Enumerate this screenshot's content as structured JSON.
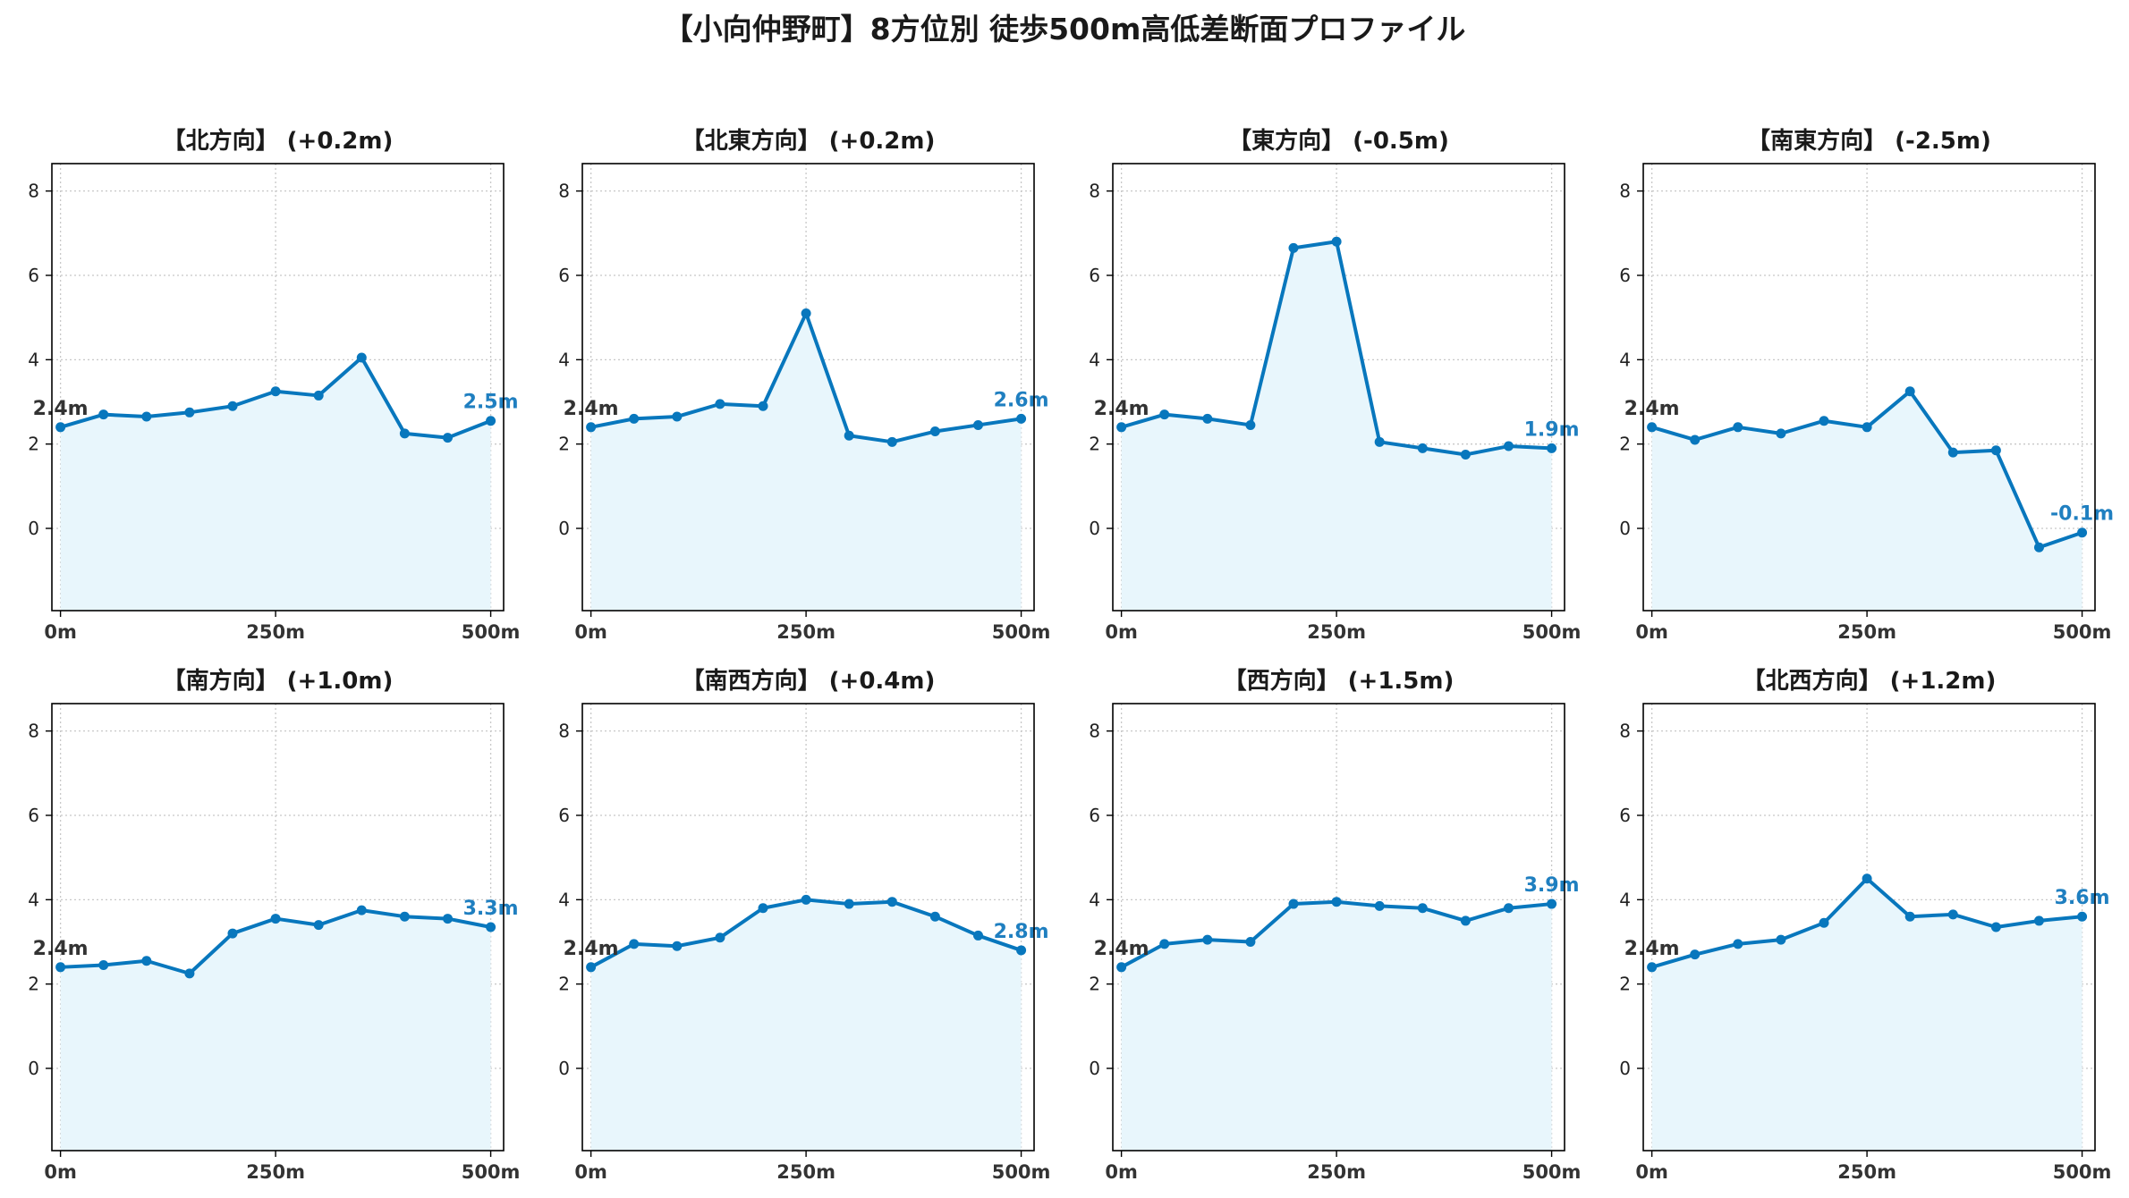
{
  "figure": {
    "title": "【小向仲野町】8方位別 徒歩500m高低差断面プロファイル",
    "line_color": "#0877bd",
    "fill_color": "#e8f6fc",
    "start_label_color": "#333333",
    "end_label_color": "#1f7fc0",
    "grid": true,
    "grid_style": "dotted",
    "axes_frame_color": "#000000"
  },
  "chart_data": [
    {
      "type": "line",
      "title": "【北方向】 (+0.2m)",
      "x": [
        0,
        50,
        100,
        150,
        200,
        250,
        300,
        350,
        400,
        450,
        500
      ],
      "y": [
        2.4,
        2.7,
        2.65,
        2.75,
        2.9,
        3.25,
        3.15,
        4.05,
        2.25,
        2.15,
        2.55
      ],
      "start_label": "2.4m",
      "end_label": "2.5m",
      "xticks": [
        0,
        250,
        500
      ],
      "xticklabels": [
        "0m",
        "250m",
        "500m"
      ],
      "yticks": [
        0,
        2,
        4,
        6,
        8
      ],
      "xlim": [
        -10,
        515
      ],
      "ylim": [
        -1.95,
        8.65
      ]
    },
    {
      "type": "line",
      "title": "【北東方向】 (+0.2m)",
      "x": [
        0,
        50,
        100,
        150,
        200,
        250,
        300,
        350,
        400,
        450,
        500
      ],
      "y": [
        2.4,
        2.6,
        2.65,
        2.95,
        2.9,
        5.1,
        2.2,
        2.05,
        2.3,
        2.45,
        2.6
      ],
      "start_label": "2.4m",
      "end_label": "2.6m",
      "xticks": [
        0,
        250,
        500
      ],
      "xticklabels": [
        "0m",
        "250m",
        "500m"
      ],
      "yticks": [
        0,
        2,
        4,
        6,
        8
      ],
      "xlim": [
        -10,
        515
      ],
      "ylim": [
        -1.95,
        8.65
      ]
    },
    {
      "type": "line",
      "title": "【東方向】 (-0.5m)",
      "x": [
        0,
        50,
        100,
        150,
        200,
        250,
        300,
        350,
        400,
        450,
        500
      ],
      "y": [
        2.4,
        2.7,
        2.6,
        2.45,
        6.65,
        6.8,
        2.05,
        1.9,
        1.75,
        1.95,
        1.9
      ],
      "start_label": "2.4m",
      "end_label": "1.9m",
      "xticks": [
        0,
        250,
        500
      ],
      "xticklabels": [
        "0m",
        "250m",
        "500m"
      ],
      "yticks": [
        0,
        2,
        4,
        6,
        8
      ],
      "xlim": [
        -10,
        515
      ],
      "ylim": [
        -1.95,
        8.65
      ]
    },
    {
      "type": "line",
      "title": "【南東方向】 (-2.5m)",
      "x": [
        0,
        50,
        100,
        150,
        200,
        250,
        300,
        350,
        400,
        450,
        500
      ],
      "y": [
        2.4,
        2.1,
        2.4,
        2.25,
        2.55,
        2.4,
        3.25,
        1.8,
        1.85,
        -0.45,
        -0.1
      ],
      "start_label": "2.4m",
      "end_label": "-0.1m",
      "xticks": [
        0,
        250,
        500
      ],
      "xticklabels": [
        "0m",
        "250m",
        "500m"
      ],
      "yticks": [
        0,
        2,
        4,
        6,
        8
      ],
      "xlim": [
        -10,
        515
      ],
      "ylim": [
        -1.95,
        8.65
      ]
    },
    {
      "type": "line",
      "title": "【南方向】 (+1.0m)",
      "x": [
        0,
        50,
        100,
        150,
        200,
        250,
        300,
        350,
        400,
        450,
        500
      ],
      "y": [
        2.4,
        2.45,
        2.55,
        2.25,
        3.2,
        3.55,
        3.4,
        3.75,
        3.6,
        3.55,
        3.35
      ],
      "start_label": "2.4m",
      "end_label": "3.3m",
      "xticks": [
        0,
        250,
        500
      ],
      "xticklabels": [
        "0m",
        "250m",
        "500m"
      ],
      "yticks": [
        0,
        2,
        4,
        6,
        8
      ],
      "xlim": [
        -10,
        515
      ],
      "ylim": [
        -1.95,
        8.65
      ]
    },
    {
      "type": "line",
      "title": "【南西方向】 (+0.4m)",
      "x": [
        0,
        50,
        100,
        150,
        200,
        250,
        300,
        350,
        400,
        450,
        500
      ],
      "y": [
        2.4,
        2.95,
        2.9,
        3.1,
        3.8,
        4.0,
        3.9,
        3.95,
        3.6,
        3.15,
        2.8
      ],
      "start_label": "2.4m",
      "end_label": "2.8m",
      "xticks": [
        0,
        250,
        500
      ],
      "xticklabels": [
        "0m",
        "250m",
        "500m"
      ],
      "yticks": [
        0,
        2,
        4,
        6,
        8
      ],
      "xlim": [
        -10,
        515
      ],
      "ylim": [
        -1.95,
        8.65
      ]
    },
    {
      "type": "line",
      "title": "【西方向】 (+1.5m)",
      "x": [
        0,
        50,
        100,
        150,
        200,
        250,
        300,
        350,
        400,
        450,
        500
      ],
      "y": [
        2.4,
        2.95,
        3.05,
        3.0,
        3.9,
        3.95,
        3.85,
        3.8,
        3.5,
        3.8,
        3.9
      ],
      "start_label": "2.4m",
      "end_label": "3.9m",
      "xticks": [
        0,
        250,
        500
      ],
      "xticklabels": [
        "0m",
        "250m",
        "500m"
      ],
      "yticks": [
        0,
        2,
        4,
        6,
        8
      ],
      "xlim": [
        -10,
        515
      ],
      "ylim": [
        -1.95,
        8.65
      ]
    },
    {
      "type": "line",
      "title": "【北西方向】 (+1.2m)",
      "x": [
        0,
        50,
        100,
        150,
        200,
        250,
        300,
        350,
        400,
        450,
        500
      ],
      "y": [
        2.4,
        2.7,
        2.95,
        3.05,
        3.45,
        4.5,
        3.6,
        3.65,
        3.35,
        3.5,
        3.6
      ],
      "start_label": "2.4m",
      "end_label": "3.6m",
      "xticks": [
        0,
        250,
        500
      ],
      "xticklabels": [
        "0m",
        "250m",
        "500m"
      ],
      "yticks": [
        0,
        2,
        4,
        6,
        8
      ],
      "xlim": [
        -10,
        515
      ],
      "ylim": [
        -1.95,
        8.65
      ]
    }
  ]
}
